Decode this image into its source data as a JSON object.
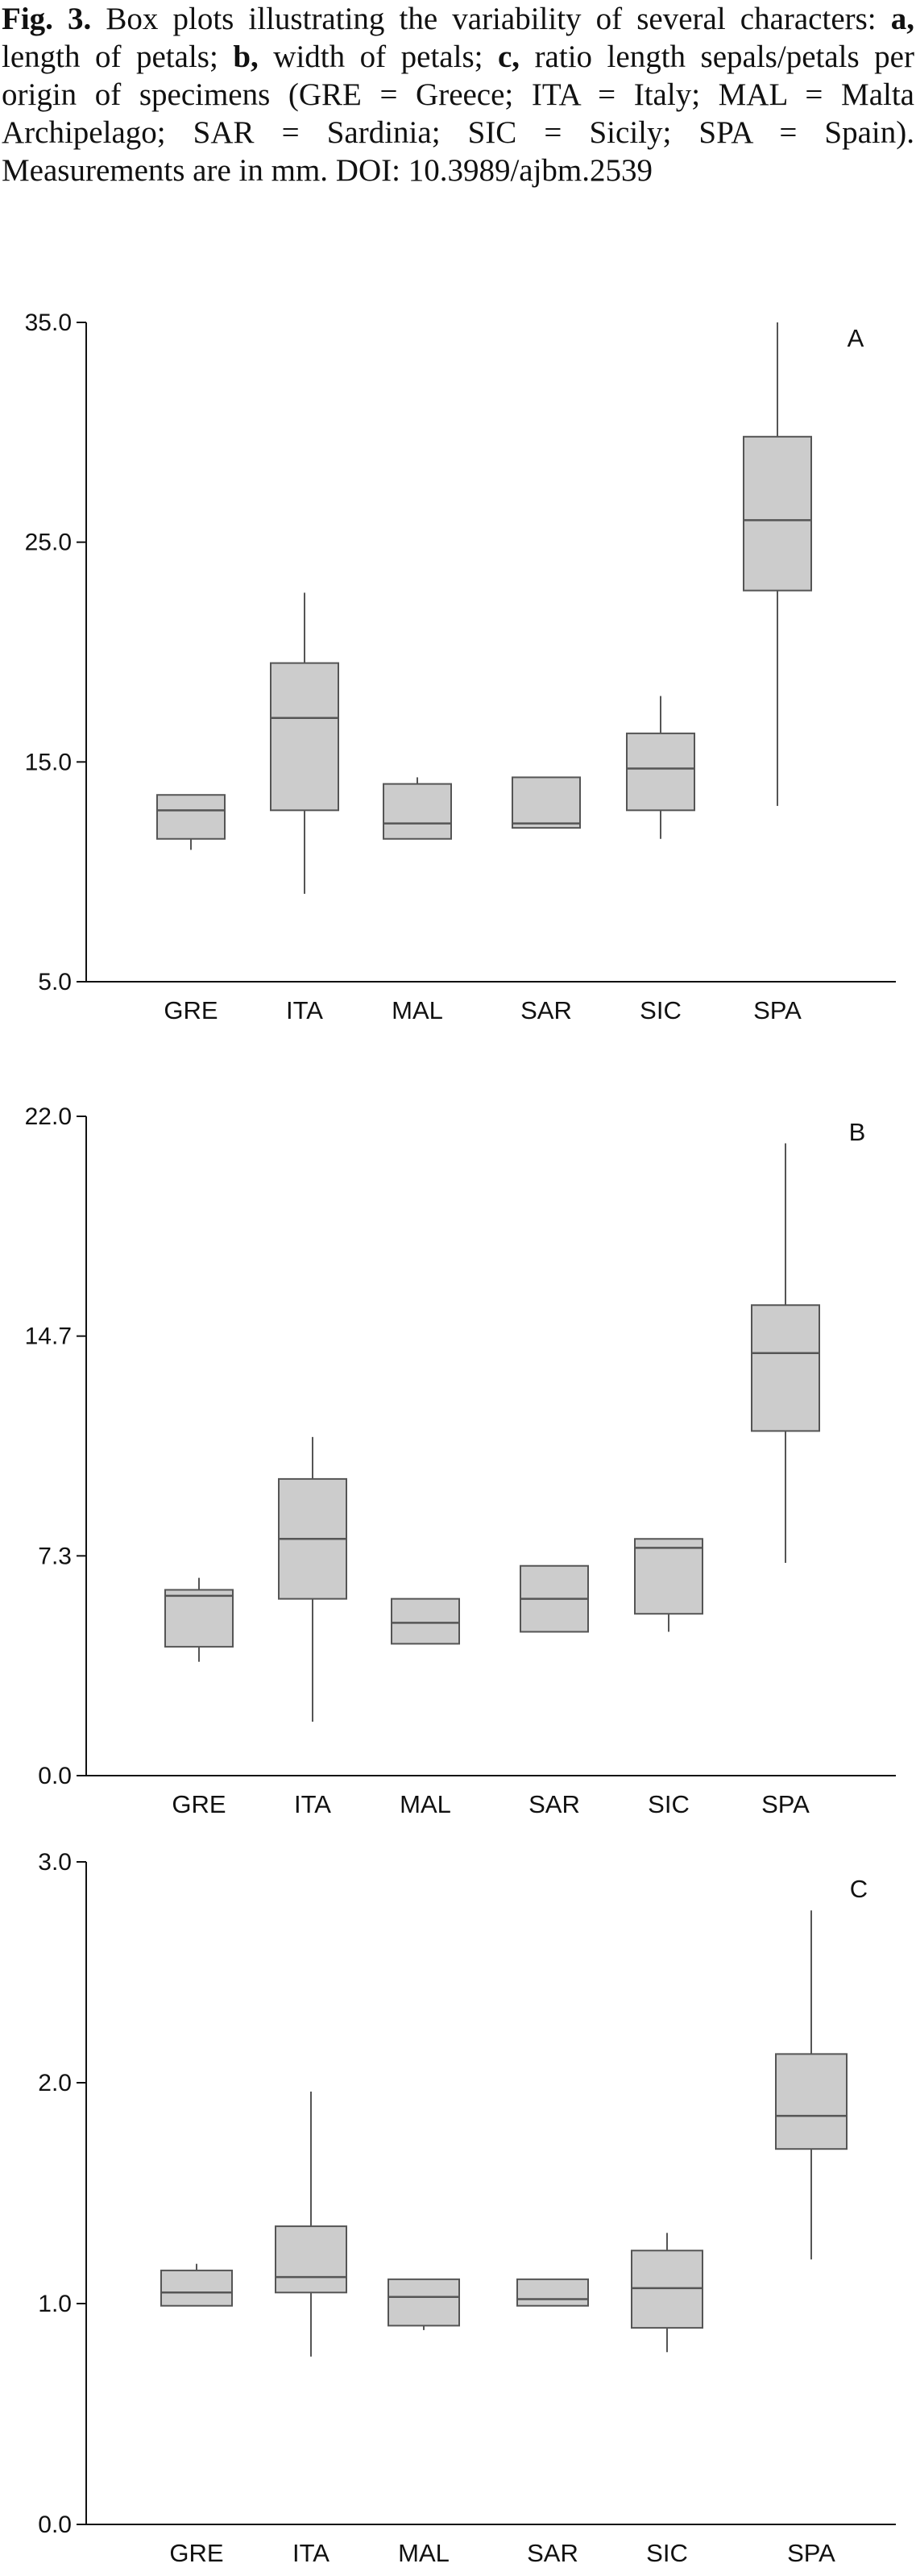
{
  "caption": {
    "fig_label": "Fig. 3.",
    "s1": " Box plots illustrating the variability of several characters: ",
    "a_label": "a,",
    "s2": " length of petals; ",
    "b_label": "b,",
    "s3": " width of petals; ",
    "c_label": "c,",
    "s4": " ratio length sepals/petals per origin of specimens (GRE = Greece; ITA = Italy; MAL = Malta Archipelago; SAR = Sardinia; SIC = Sicily; SPA = Spain). Measurements are in mm. DOI: 10.3989/ajbm.2539"
  },
  "colors": {
    "box_fill": "#cccccc",
    "stroke": "#555555",
    "axis": "#111111"
  },
  "chart_data": [
    {
      "type": "box",
      "panel_label": "A",
      "categories": [
        "GRE",
        "ITA",
        "MAL",
        "SAR",
        "SIC",
        "SPA"
      ],
      "yticks": [
        "5.0",
        "15.0",
        "25.0",
        "35.0"
      ],
      "ylim": [
        5.0,
        35.0
      ],
      "boxes": [
        {
          "min": 11.0,
          "q1": 11.5,
          "median": 12.8,
          "q3": 13.5,
          "max": 13.5
        },
        {
          "min": 9.0,
          "q1": 12.8,
          "median": 17.0,
          "q3": 19.5,
          "max": 22.7
        },
        {
          "min": 11.5,
          "q1": 11.5,
          "median": 12.2,
          "q3": 14.0,
          "max": 14.3
        },
        {
          "min": 12.0,
          "q1": 12.0,
          "median": 12.2,
          "q3": 14.3,
          "max": 14.3
        },
        {
          "min": 11.5,
          "q1": 12.8,
          "median": 14.7,
          "q3": 16.3,
          "max": 18.0
        },
        {
          "min": 13.0,
          "q1": 22.8,
          "median": 26.0,
          "q3": 29.8,
          "max": 35.0
        }
      ]
    },
    {
      "type": "box",
      "panel_label": "B",
      "categories": [
        "GRE",
        "ITA",
        "MAL",
        "SAR",
        "SIC",
        "SPA"
      ],
      "yticks": [
        "0.0",
        "7.3",
        "14.7",
        "22.0"
      ],
      "ylim": [
        0.0,
        22.0
      ],
      "boxes": [
        {
          "min": 3.8,
          "q1": 4.3,
          "median": 6.0,
          "q3": 6.2,
          "max": 6.6
        },
        {
          "min": 1.8,
          "q1": 5.9,
          "median": 7.9,
          "q3": 9.9,
          "max": 11.3
        },
        {
          "min": 4.4,
          "q1": 4.4,
          "median": 5.1,
          "q3": 5.9,
          "max": 5.9
        },
        {
          "min": 4.8,
          "q1": 4.8,
          "median": 5.9,
          "q3": 7.0,
          "max": 7.0
        },
        {
          "min": 4.8,
          "q1": 5.4,
          "median": 7.6,
          "q3": 7.9,
          "max": 7.9
        },
        {
          "min": 7.1,
          "q1": 11.5,
          "median": 14.1,
          "q3": 15.7,
          "max": 21.1
        }
      ]
    },
    {
      "type": "box",
      "panel_label": "C",
      "categories": [
        "GRE",
        "ITA",
        "MAL",
        "SAR",
        "SIC",
        "SPA"
      ],
      "yticks": [
        "0.0",
        "1.0",
        "2.0",
        "3.0"
      ],
      "ylim": [
        0.0,
        3.0
      ],
      "boxes": [
        {
          "min": 0.99,
          "q1": 0.99,
          "median": 1.05,
          "q3": 1.15,
          "max": 1.18
        },
        {
          "min": 0.76,
          "q1": 1.05,
          "median": 1.12,
          "q3": 1.35,
          "max": 1.96
        },
        {
          "min": 0.88,
          "q1": 0.9,
          "median": 1.03,
          "q3": 1.11,
          "max": 1.11
        },
        {
          "min": 0.99,
          "q1": 0.99,
          "median": 1.02,
          "q3": 1.11,
          "max": 1.11
        },
        {
          "min": 0.78,
          "q1": 0.89,
          "median": 1.07,
          "q3": 1.24,
          "max": 1.32
        },
        {
          "min": 1.2,
          "q1": 1.7,
          "median": 1.85,
          "q3": 2.13,
          "max": 2.78
        }
      ]
    }
  ]
}
